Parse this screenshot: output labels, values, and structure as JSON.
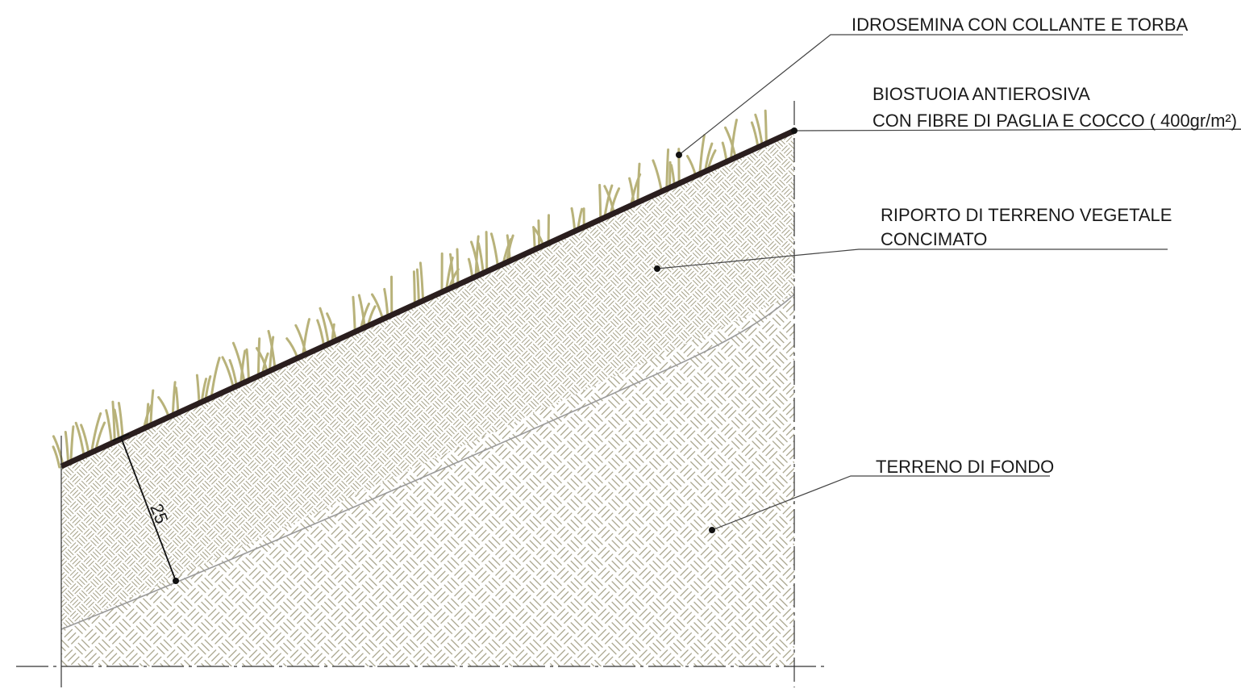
{
  "labels": {
    "hydroseeding": "IDROSEMINA CON COLLANTE E TORBA",
    "biomat_line1": "BIOSTUOIA ANTIEROSIVA",
    "biomat_line2": "CON FIBRE DI PAGLIA E COCCO ( 400gr/m²)",
    "topsoil_line1": "RIPORTO DI TERRENO VEGETALE",
    "topsoil_line2": "CONCIMATO",
    "subsoil": "TERRENO DI FONDO"
  },
  "dimension": {
    "thickness_value": "25"
  },
  "colors": {
    "grass": "#b8b27a",
    "hatch": "#9e9a7e",
    "mat": "#2a1e1e",
    "line": "#333333",
    "background": "#ffffff"
  }
}
